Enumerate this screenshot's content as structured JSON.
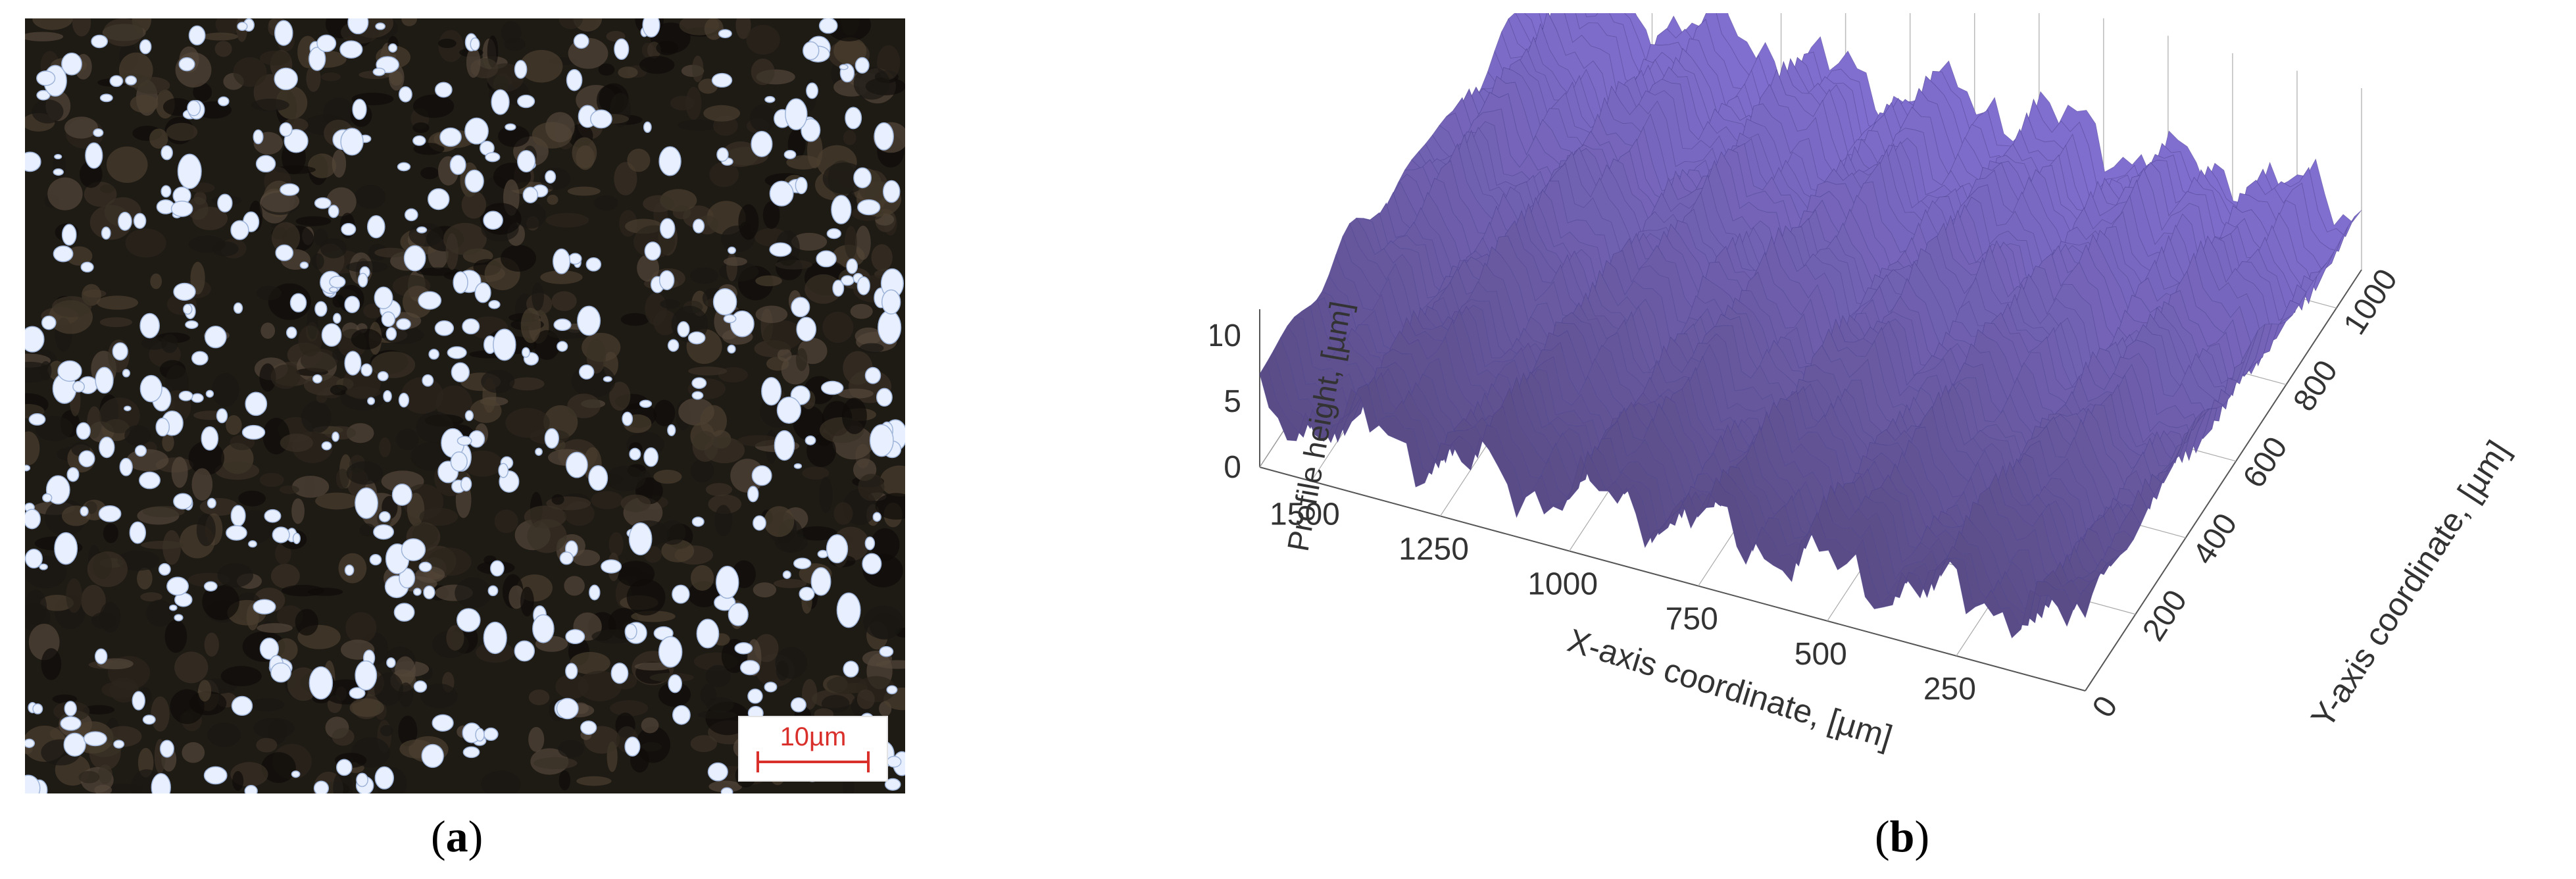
{
  "panels": {
    "a": {
      "label_open": "(",
      "label_letter": "a",
      "label_close": ")"
    },
    "b": {
      "label_open": "(",
      "label_letter": "b",
      "label_close": ")"
    }
  },
  "micrograph": {
    "scale_bar_label": "10µm",
    "scale_bar_color": "#d9302c",
    "background_color": "#1e1a14",
    "particle_color": "#e8f0ff"
  },
  "chart_data": {
    "type": "surface-3d",
    "zlabel": "Profile height, [µm]",
    "xlabel": "X-axis coordinate, [µm]",
    "ylabel": "Y-axis coordinate, [µm]",
    "z_ticks": [
      "10",
      "5",
      "0"
    ],
    "x_ticks": [
      "1500",
      "1250",
      "1000",
      "750",
      "500",
      "250"
    ],
    "y_ticks": [
      "0",
      "200",
      "400",
      "600",
      "800",
      "1000"
    ],
    "z_range": [
      0,
      12
    ],
    "x_range": [
      0,
      1600
    ],
    "y_range": [
      0,
      1100
    ],
    "surface_color": "#7b6fb8",
    "surface_dark": "#2a2250",
    "surface_light": "#c9c2ec"
  }
}
